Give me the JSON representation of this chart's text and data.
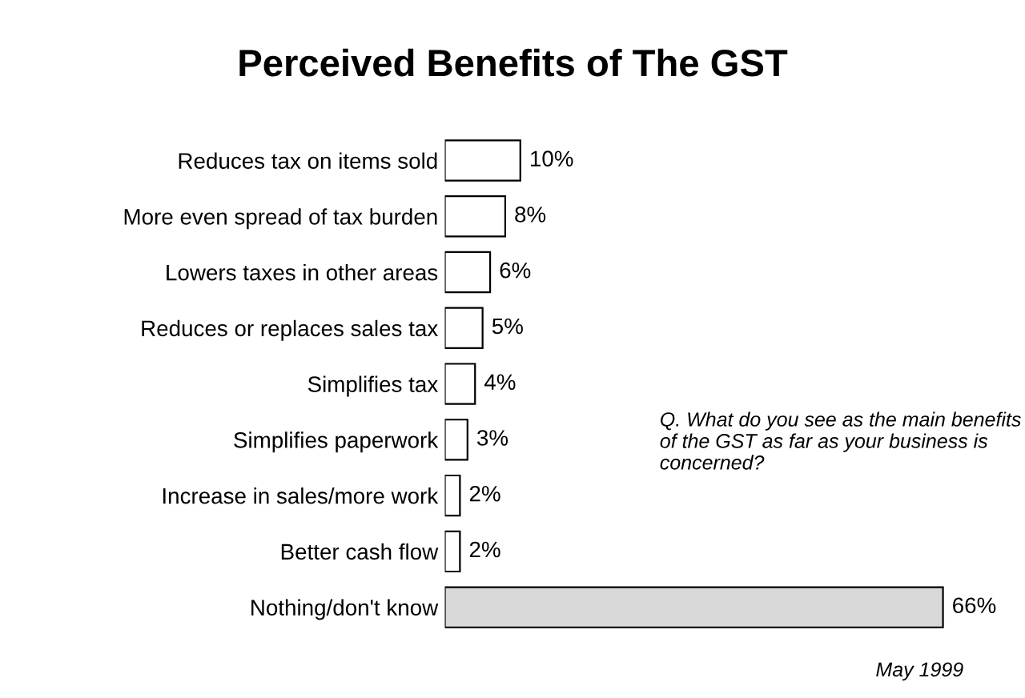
{
  "chart_data": {
    "type": "bar",
    "orientation": "horizontal",
    "title": "Perceived Benefits of The GST",
    "categories": [
      "Reduces tax on items sold",
      "More even spread of tax burden",
      "Lowers taxes in other areas",
      "Reduces or replaces sales tax",
      "Simplifies tax",
      "Simplifies paperwork",
      "Increase in sales/more work",
      "Better cash flow",
      "Nothing/don't know"
    ],
    "values": [
      10,
      8,
      6,
      5,
      4,
      3,
      2,
      2,
      66
    ],
    "value_labels": [
      "10%",
      "8%",
      "6%",
      "5%",
      "4%",
      "3%",
      "2%",
      "2%",
      "66%"
    ],
    "colors": [
      "#ffffff",
      "#ffffff",
      "#ffffff",
      "#ffffff",
      "#ffffff",
      "#ffffff",
      "#ffffff",
      "#ffffff",
      "#d9d9d9"
    ],
    "annotations": [
      "Q. What do you see as the main benefits of the GST as far as your business is concerned?",
      "May 1999"
    ],
    "grid": false,
    "legend": false
  }
}
